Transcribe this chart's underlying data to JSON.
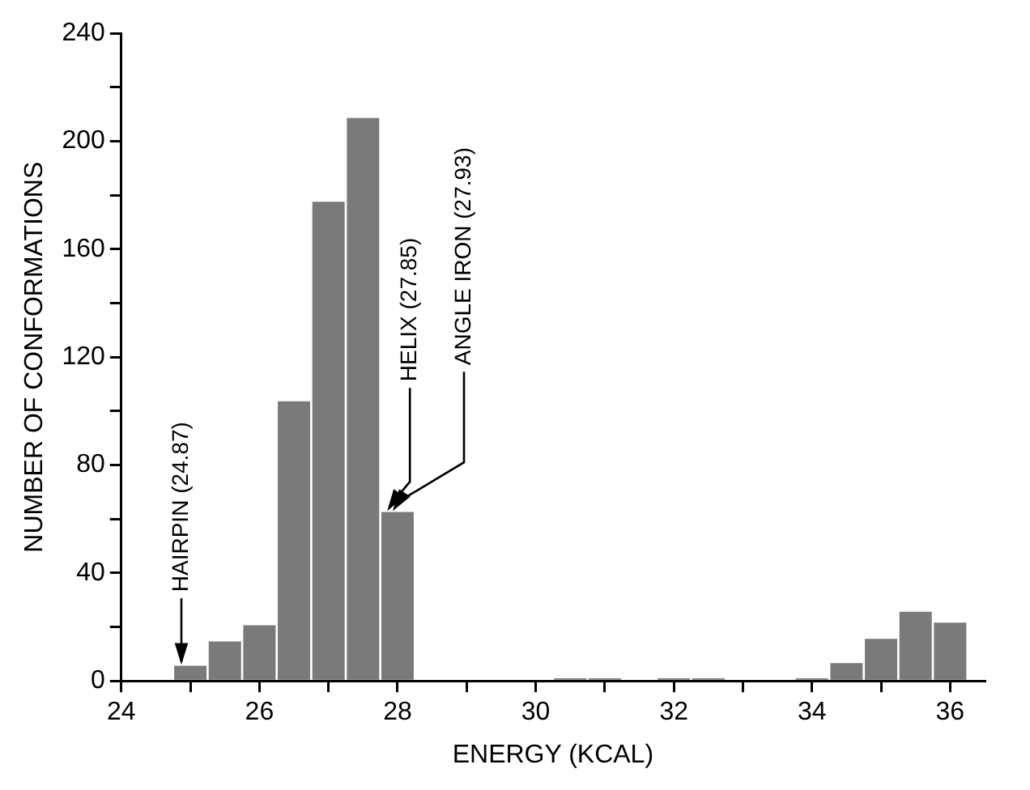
{
  "chart_data": {
    "type": "histogram",
    "xlabel": "ENERGY (KCAL)",
    "ylabel": "NUMBER OF CONFORMATIONS",
    "bins": [
      24.75,
      25.25,
      25.75,
      26.25,
      26.75,
      27.25,
      27.75,
      28.25,
      28.75,
      29.25,
      29.75,
      30.25,
      30.75,
      31.25,
      31.75,
      32.25,
      32.75,
      33.25,
      33.75,
      34.25,
      34.75,
      35.25,
      35.75,
      36.25
    ],
    "values": [
      6,
      15,
      21,
      104,
      178,
      209,
      63,
      0,
      0,
      0,
      0,
      1,
      1,
      0,
      1,
      1,
      0,
      0,
      1,
      7,
      16,
      26,
      22
    ],
    "color": "#7a7a7a",
    "xlim": [
      24,
      36.5
    ],
    "xticks": [
      24,
      {
        "value": 25,
        "label": null
      },
      26,
      {
        "value": 27,
        "label": null
      },
      28,
      {
        "value": 29,
        "label": null
      },
      30,
      {
        "value": 31,
        "label": null
      },
      32,
      {
        "value": 33,
        "label": null
      },
      34,
      {
        "value": 35,
        "label": null
      },
      36
    ],
    "ylim": [
      0,
      240
    ],
    "yticks": [
      0,
      {
        "value": 20,
        "label": null
      },
      40,
      {
        "value": 60,
        "label": null
      },
      80,
      {
        "value": 100,
        "label": null
      },
      120,
      {
        "value": 140,
        "label": null
      },
      160,
      {
        "value": 180,
        "label": null
      },
      200,
      {
        "value": 220,
        "label": null
      },
      240
    ],
    "annotations": [
      {
        "text": "HAIRPIN (24.87)",
        "x": 24.87,
        "y": 6
      },
      {
        "text": "HELIX (27.85)",
        "x": 27.85,
        "y": 63
      },
      {
        "text": "ANGLE IRON (27.93)",
        "x": 27.93,
        "y": 63
      }
    ],
    "grid": false,
    "legend": false
  }
}
